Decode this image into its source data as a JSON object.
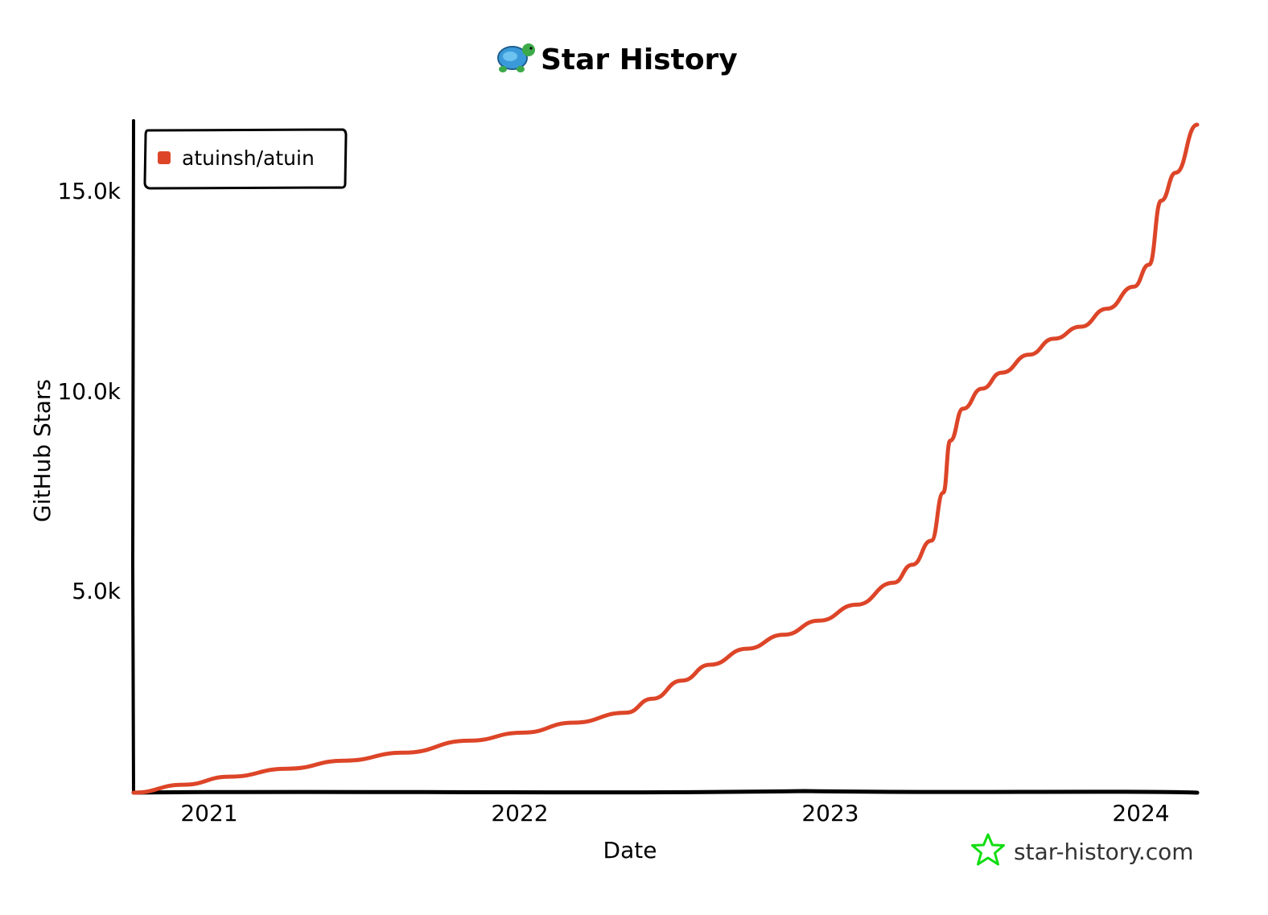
{
  "chart_data": {
    "type": "line",
    "title": "Star History",
    "xlabel": "Date",
    "ylabel": "GitHub Stars",
    "x_ticks": [
      "2021",
      "2022",
      "2023",
      "2024"
    ],
    "y_ticks": [
      "5.0k",
      "10.0k",
      "15.0k"
    ],
    "ylim": [
      0,
      16800
    ],
    "xlim": [
      "2020-10-04",
      "2024-02-26"
    ],
    "grid": false,
    "legend_position": "top-left",
    "series": [
      {
        "name": "atuinsh/atuin",
        "color": "#dd4528",
        "points": [
          [
            "2020-10-04",
            0
          ],
          [
            "2020-12-01",
            200
          ],
          [
            "2021-01-24",
            400
          ],
          [
            "2021-04-01",
            600
          ],
          [
            "2021-06-07",
            800
          ],
          [
            "2021-08-15",
            1000
          ],
          [
            "2021-10-30",
            1300
          ],
          [
            "2022-01-01",
            1500
          ],
          [
            "2022-03-01",
            1750
          ],
          [
            "2022-05-01",
            2000
          ],
          [
            "2022-06-01",
            2350
          ],
          [
            "2022-07-05",
            2800
          ],
          [
            "2022-08-07",
            3200
          ],
          [
            "2022-09-19",
            3600
          ],
          [
            "2022-11-01",
            3950
          ],
          [
            "2022-12-12",
            4300
          ],
          [
            "2023-01-25",
            4700
          ],
          [
            "2023-03-09",
            5250
          ],
          [
            "2023-03-31",
            5700
          ],
          [
            "2023-04-22",
            6300
          ],
          [
            "2023-05-06",
            7500
          ],
          [
            "2023-05-14",
            8800
          ],
          [
            "2023-05-29",
            9600
          ],
          [
            "2023-06-20",
            10100
          ],
          [
            "2023-07-13",
            10500
          ],
          [
            "2023-08-14",
            10950
          ],
          [
            "2023-09-12",
            11350
          ],
          [
            "2023-10-13",
            11650
          ],
          [
            "2023-11-13",
            12100
          ],
          [
            "2023-12-14",
            12650
          ],
          [
            "2024-01-01",
            13200
          ],
          [
            "2024-01-15",
            14800
          ],
          [
            "2024-02-01",
            15500
          ],
          [
            "2024-02-26",
            16700
          ]
        ]
      }
    ]
  },
  "branding": {
    "credit": "star-history.com",
    "logo_icon": "turtle-icon",
    "credit_icon": "star-icon",
    "credit_color": "#11dd11"
  }
}
